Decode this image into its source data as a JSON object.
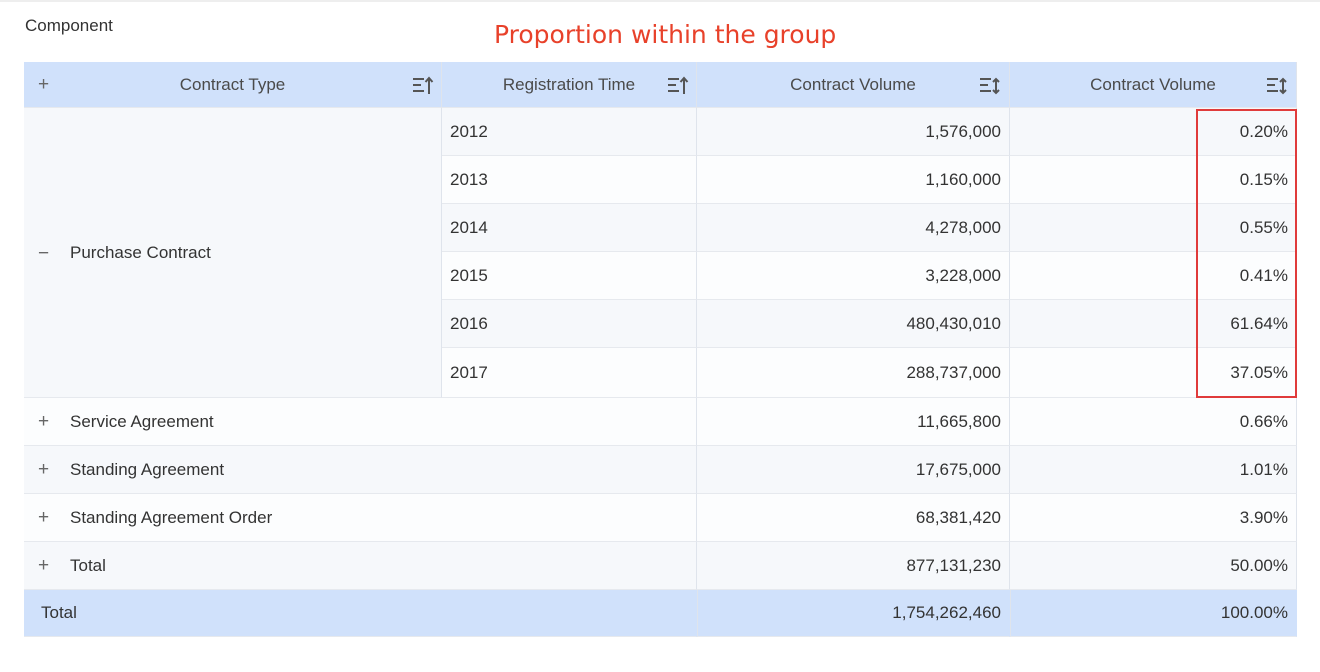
{
  "component_label": "Component",
  "annotation": "Proportion within the group",
  "columns": {
    "contract_type": "Contract Type",
    "registration_time": "Registration Time",
    "contract_volume": "Contract Volume",
    "contract_volume_pct": "Contract Volume"
  },
  "expanded_group": {
    "label": "Purchase Contract",
    "rows": [
      {
        "year": "2012",
        "volume": "1,576,000",
        "pct": "0.20%"
      },
      {
        "year": "2013",
        "volume": "1,160,000",
        "pct": "0.15%"
      },
      {
        "year": "2014",
        "volume": "4,278,000",
        "pct": "0.55%"
      },
      {
        "year": "2015",
        "volume": "3,228,000",
        "pct": "0.41%"
      },
      {
        "year": "2016",
        "volume": "480,430,010",
        "pct": "61.64%"
      },
      {
        "year": "2017",
        "volume": "288,737,000",
        "pct": "37.05%"
      }
    ]
  },
  "collapsed_groups": [
    {
      "label": "Service Agreement",
      "volume": "11,665,800",
      "pct": "0.66%"
    },
    {
      "label": "Standing Agreement",
      "volume": "17,675,000",
      "pct": "1.01%"
    },
    {
      "label": "Standing Agreement Order",
      "volume": "68,381,420",
      "pct": "3.90%"
    },
    {
      "label": "Total",
      "volume": "877,131,230",
      "pct": "50.00%"
    }
  ],
  "grand_total": {
    "label": "Total",
    "volume": "1,754,262,460",
    "pct": "100.00%"
  },
  "icons": {
    "expand_all": "plus-icon",
    "collapse": "minus-icon",
    "expand": "plus-icon",
    "sort": "sort-icon"
  },
  "colors": {
    "header_bg": "#d0e1fb",
    "highlight_border": "#e03b3b",
    "annotation_text": "#e8412a"
  }
}
